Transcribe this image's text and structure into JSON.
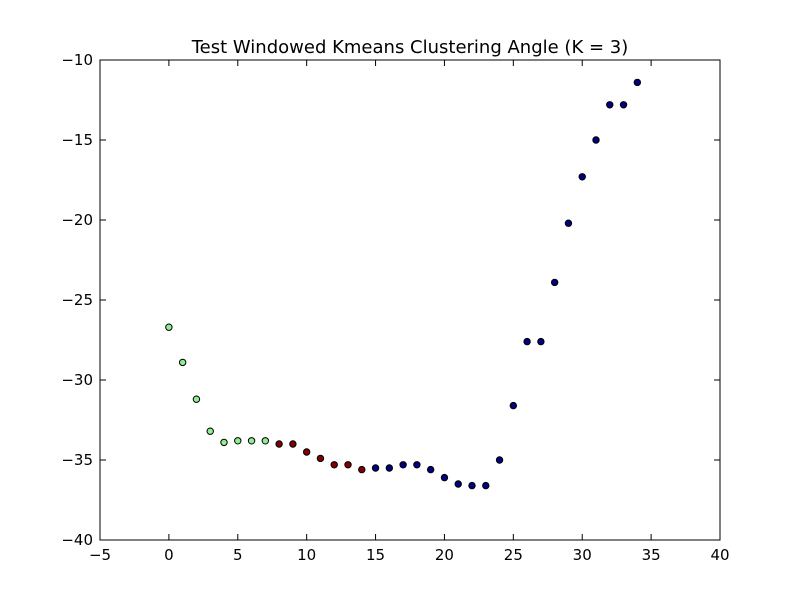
{
  "chart_data": {
    "type": "scatter",
    "title": "Test Windowed Kmeans Clustering Angle (K = 3)",
    "xlabel": "",
    "ylabel": "",
    "xlim": [
      -5,
      40
    ],
    "ylim": [
      -40,
      -10
    ],
    "xticks": [
      -5,
      0,
      5,
      10,
      15,
      20,
      25,
      30,
      35,
      40
    ],
    "yticks": [
      -40,
      -35,
      -30,
      -25,
      -20,
      -15,
      -10
    ],
    "xtick_labels": [
      "−5",
      "0",
      "5",
      "10",
      "15",
      "20",
      "25",
      "30",
      "35",
      "40"
    ],
    "ytick_labels": [
      "−40",
      "−35",
      "−30",
      "−25",
      "−20",
      "−15",
      "−10"
    ],
    "grid": false,
    "legend": "none",
    "cluster_colors": [
      "#90ee90",
      "#800000",
      "#000080"
    ],
    "points": [
      {
        "x": 0,
        "y": -26.7,
        "cluster": 0
      },
      {
        "x": 1,
        "y": -28.9,
        "cluster": 0
      },
      {
        "x": 2,
        "y": -31.2,
        "cluster": 0
      },
      {
        "x": 3,
        "y": -33.2,
        "cluster": 0
      },
      {
        "x": 4,
        "y": -33.9,
        "cluster": 0
      },
      {
        "x": 5,
        "y": -33.8,
        "cluster": 0
      },
      {
        "x": 6,
        "y": -33.8,
        "cluster": 0
      },
      {
        "x": 7,
        "y": -33.8,
        "cluster": 0
      },
      {
        "x": 8,
        "y": -34.0,
        "cluster": 1
      },
      {
        "x": 9,
        "y": -34.0,
        "cluster": 1
      },
      {
        "x": 10,
        "y": -34.5,
        "cluster": 1
      },
      {
        "x": 11,
        "y": -34.9,
        "cluster": 1
      },
      {
        "x": 12,
        "y": -35.3,
        "cluster": 1
      },
      {
        "x": 13,
        "y": -35.3,
        "cluster": 1
      },
      {
        "x": 14,
        "y": -35.6,
        "cluster": 1
      },
      {
        "x": 15,
        "y": -35.5,
        "cluster": 2
      },
      {
        "x": 16,
        "y": -35.5,
        "cluster": 2
      },
      {
        "x": 17,
        "y": -35.3,
        "cluster": 2
      },
      {
        "x": 18,
        "y": -35.3,
        "cluster": 2
      },
      {
        "x": 19,
        "y": -35.6,
        "cluster": 2
      },
      {
        "x": 20,
        "y": -36.1,
        "cluster": 2
      },
      {
        "x": 21,
        "y": -36.5,
        "cluster": 2
      },
      {
        "x": 22,
        "y": -36.6,
        "cluster": 2
      },
      {
        "x": 23,
        "y": -36.6,
        "cluster": 2
      },
      {
        "x": 24,
        "y": -35.0,
        "cluster": 2
      },
      {
        "x": 25,
        "y": -31.6,
        "cluster": 2
      },
      {
        "x": 26,
        "y": -27.6,
        "cluster": 2
      },
      {
        "x": 27,
        "y": -27.6,
        "cluster": 2
      },
      {
        "x": 28,
        "y": -23.9,
        "cluster": 2
      },
      {
        "x": 29,
        "y": -20.2,
        "cluster": 2
      },
      {
        "x": 30,
        "y": -17.3,
        "cluster": 2
      },
      {
        "x": 31,
        "y": -15.0,
        "cluster": 2
      },
      {
        "x": 32,
        "y": -12.8,
        "cluster": 2
      },
      {
        "x": 33,
        "y": -12.8,
        "cluster": 2
      },
      {
        "x": 34,
        "y": -11.4,
        "cluster": 2
      }
    ]
  }
}
